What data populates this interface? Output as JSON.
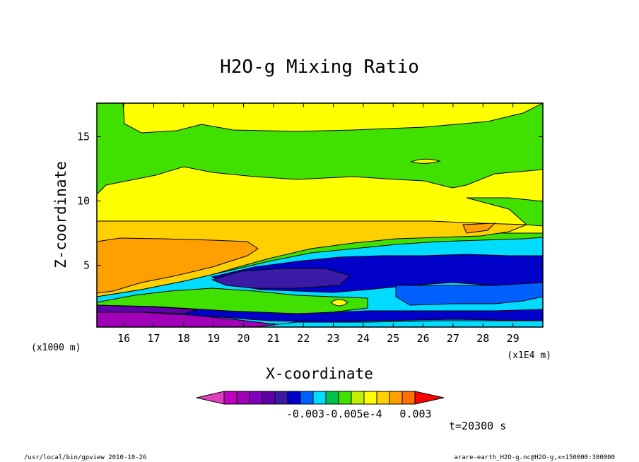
{
  "chart_data": {
    "type": "heatmap",
    "title": "H2O-g Mixing Ratio",
    "xlabel": "X-coordinate",
    "ylabel": "Z-coordinate",
    "x_unit_left": "(x1000 m)",
    "x_unit_right": "(x1E4 m)",
    "x_ticks": [
      16,
      17,
      18,
      19,
      20,
      21,
      22,
      23,
      24,
      25,
      26,
      27,
      28,
      29
    ],
    "y_ticks": [
      5,
      10,
      15
    ],
    "xlim": [
      15.1,
      30.0
    ],
    "ylim": [
      0.2,
      17.6
    ],
    "colorbar": {
      "colors": [
        "#e040c0",
        "#c000c0",
        "#a000b8",
        "#8000c0",
        "#6000a8",
        "#3c1aa8",
        "#0000c8",
        "#0060ff",
        "#00dcff",
        "#00c050",
        "#40e000",
        "#c0f000",
        "#ffff00",
        "#ffd000",
        "#ffa000",
        "#ff7000",
        "#ff0000"
      ],
      "labels": [
        "-0.003",
        "-0.005e-4",
        "0.003"
      ]
    },
    "time_label": "t=20300 s"
  },
  "footer": {
    "left": "/usr/local/bin/gpview   2010-10-26",
    "right": "arare-earth_H2O-g.nc@H2O-g,x=150000:300000"
  }
}
